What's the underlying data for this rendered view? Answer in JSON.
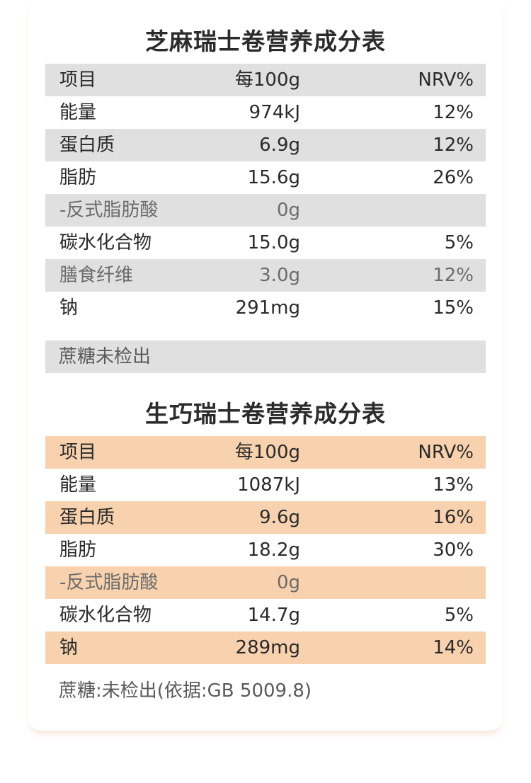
{
  "table1": {
    "title": "芝麻瑞士卷营养成分表",
    "header": {
      "item": "项目",
      "per100g": "每100g",
      "nrv": "NRV%"
    },
    "rows": [
      {
        "item": "能量",
        "per100g": "974kJ",
        "nrv": "12%"
      },
      {
        "item": "蛋白质",
        "per100g": "6.9g",
        "nrv": "12%"
      },
      {
        "item": "脂肪",
        "per100g": "15.6g",
        "nrv": "26%"
      },
      {
        "item": "-反式脂肪酸",
        "per100g": "0g",
        "nrv": ""
      },
      {
        "item": "碳水化合物",
        "per100g": "15.0g",
        "nrv": "5%"
      },
      {
        "item": "膳食纤维",
        "per100g": "3.0g",
        "nrv": "12%"
      },
      {
        "item": "钠",
        "per100g": "291mg",
        "nrv": "15%"
      }
    ],
    "note": "蔗糖未检出"
  },
  "table2": {
    "title": "生巧瑞士卷营养成分表",
    "header": {
      "item": "项目",
      "per100g": "每100g",
      "nrv": "NRV%"
    },
    "rows": [
      {
        "item": "能量",
        "per100g": "1087kJ",
        "nrv": "13%"
      },
      {
        "item": "蛋白质",
        "per100g": "9.6g",
        "nrv": "16%"
      },
      {
        "item": "脂肪",
        "per100g": "18.2g",
        "nrv": "30%"
      },
      {
        "item": "-反式脂肪酸",
        "per100g": "0g",
        "nrv": ""
      },
      {
        "item": "碳水化合物",
        "per100g": "14.7g",
        "nrv": "5%"
      },
      {
        "item": "钠",
        "per100g": "289mg",
        "nrv": "14%"
      }
    ],
    "note": "蔗糖:未检出(依据:GB 5009.8)"
  },
  "colors": {
    "gray_band": "#e0e0e0",
    "peach_band": "#f8d2ae",
    "text": "#2a2a2a"
  }
}
